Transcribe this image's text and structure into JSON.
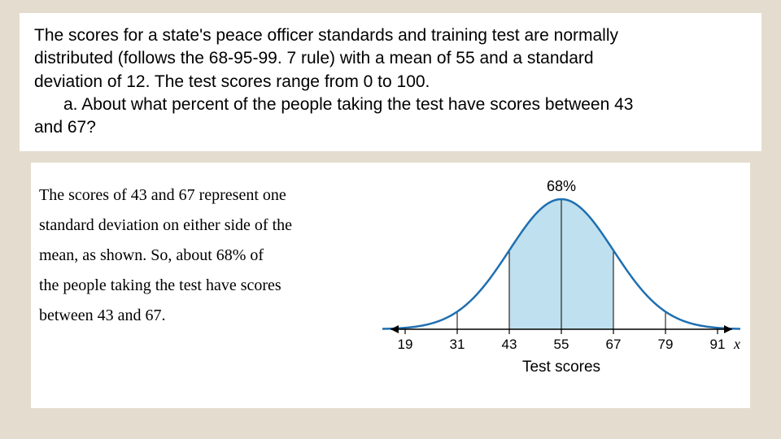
{
  "question": {
    "intro1": "The scores for a state's peace officer standards and training test are normally",
    "intro2": "distributed (follows the 68-95-99. 7 rule) with a mean of 55 and a standard",
    "intro3": "deviation of 12.  The test scores range from 0 to 100.",
    "part_a_1": "a.  About what percent of the people taking the test have scores between 43",
    "part_a_2": "and 67?"
  },
  "explanation": {
    "line1": "The scores of 43 and 67 represent one",
    "line2": "standard deviation on either side of the",
    "line3": "mean, as shown. So, about 68% of",
    "line4": "the people taking the test have scores",
    "line5": "between 43 and 67."
  },
  "chart": {
    "type": "normal-distribution",
    "percent_label": "68%",
    "axis_title": "Test scores",
    "x_var": "x",
    "mean": 55,
    "sd": 12,
    "ticks": [
      19,
      31,
      43,
      55,
      67,
      79,
      91
    ],
    "shade_from": 43,
    "shade_to": 67,
    "curve_color": "#1f6fb0",
    "curve_width": 2.5,
    "shade_fill": "#bfe0ef",
    "axis_color": "#000000",
    "vline_color": "#000000",
    "background": "#ffffff",
    "tick_fontsize": 17,
    "label_fontsize": 19,
    "pct_fontsize": 18
  }
}
